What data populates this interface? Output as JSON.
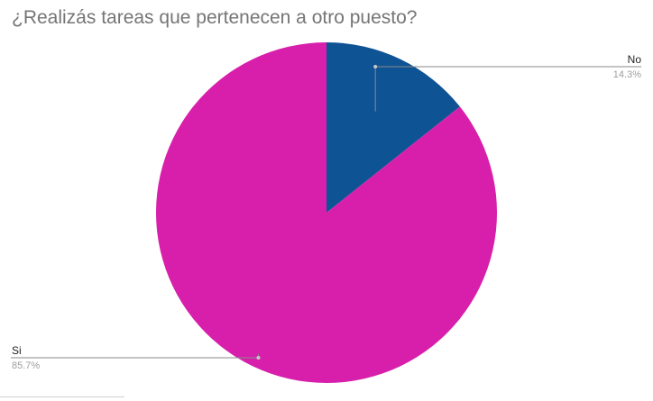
{
  "chart_data": {
    "type": "pie",
    "title": "¿Realizás tareas que pertenecen a otro puesto?",
    "slices": [
      {
        "label": "No",
        "value": 14.3,
        "percent_label": "14.3%",
        "color": "#0e5394"
      },
      {
        "label": "Si",
        "value": 85.7,
        "percent_label": "85.7%",
        "color": "#d81fab"
      }
    ],
    "start_angle": "12 o'clock",
    "direction": "clockwise",
    "legend": "none",
    "label_style": "leader lines with category and percentage"
  }
}
